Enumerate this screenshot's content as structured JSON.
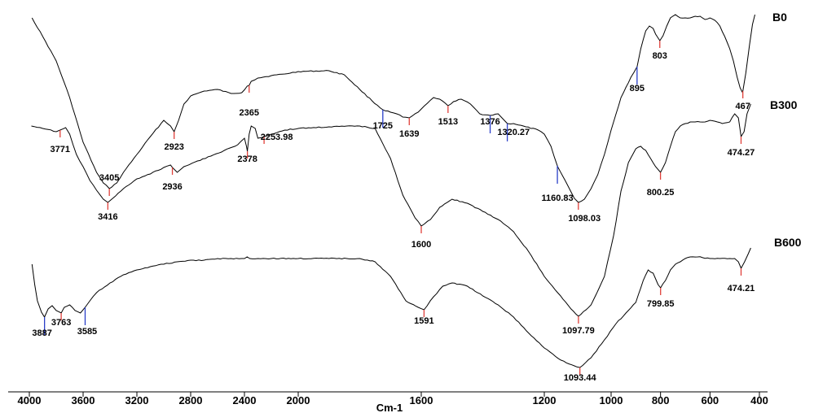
{
  "chart_data": {
    "type": "line",
    "title": "",
    "xlabel": "Cm-1",
    "ylabel": "",
    "xlim": [
      4000,
      400
    ],
    "x_reversed": true,
    "x_ticks": [
      4000,
      3600,
      3200,
      2800,
      2400,
      2000,
      1600,
      1200,
      1000,
      800,
      600,
      400
    ],
    "x_tick_labels": [
      "4000",
      "3600",
      "3200",
      "2800",
      "2400",
      "2000",
      "1600",
      "1200",
      "1000",
      "800",
      "600",
      "400"
    ],
    "ylim": [
      0,
      508
    ],
    "y_axis_shown": false,
    "grid": false,
    "colors": {
      "line": "#000000",
      "marker_red": "#e0403a",
      "marker_blue": "#2a3fc8"
    },
    "series": [
      {
        "name": "B0",
        "label_text": "B0",
        "points": [
          [
            3980,
            22
          ],
          [
            3900,
            45
          ],
          [
            3800,
            75
          ],
          [
            3700,
            120
          ],
          [
            3600,
            175
          ],
          [
            3500,
            212
          ],
          [
            3450,
            225
          ],
          [
            3405,
            232
          ],
          [
            3350,
            225
          ],
          [
            3300,
            212
          ],
          [
            3200,
            190
          ],
          [
            3100,
            168
          ],
          [
            3000,
            148
          ],
          [
            2950,
            155
          ],
          [
            2923,
            162
          ],
          [
            2890,
            148
          ],
          [
            2850,
            128
          ],
          [
            2800,
            118
          ],
          [
            2700,
            112
          ],
          [
            2600,
            110
          ],
          [
            2500,
            115
          ],
          [
            2420,
            114
          ],
          [
            2380,
            106
          ],
          [
            2365,
            105
          ],
          [
            2350,
            100
          ],
          [
            2300,
            96
          ],
          [
            2200,
            93
          ],
          [
            2100,
            91
          ],
          [
            2000,
            88
          ],
          [
            1900,
            87
          ],
          [
            1850,
            92
          ],
          [
            1800,
            110
          ],
          [
            1760,
            124
          ],
          [
            1725,
            135
          ],
          [
            1700,
            138
          ],
          [
            1680,
            140
          ],
          [
            1660,
            144
          ],
          [
            1639,
            145
          ],
          [
            1610,
            138
          ],
          [
            1580,
            127
          ],
          [
            1560,
            120
          ],
          [
            1540,
            122
          ],
          [
            1513,
            130
          ],
          [
            1495,
            125
          ],
          [
            1470,
            122
          ],
          [
            1440,
            128
          ],
          [
            1410,
            140
          ],
          [
            1376,
            142
          ],
          [
            1350,
            140
          ],
          [
            1335,
            146
          ],
          [
            1320,
            152
          ],
          [
            1300,
            152
          ],
          [
            1260,
            156
          ],
          [
            1220,
            160
          ],
          [
            1200,
            165
          ],
          [
            1180,
            180
          ],
          [
            1160,
            205
          ],
          [
            1130,
            228
          ],
          [
            1110,
            244
          ],
          [
            1098,
            249
          ],
          [
            1080,
            245
          ],
          [
            1060,
            232
          ],
          [
            1040,
            215
          ],
          [
            1020,
            190
          ],
          [
            1000,
            160
          ],
          [
            960,
            120
          ],
          [
            920,
            95
          ],
          [
            895,
            82
          ],
          [
            880,
            60
          ],
          [
            860,
            38
          ],
          [
            845,
            32
          ],
          [
            830,
            35
          ],
          [
            820,
            42
          ],
          [
            803,
            50
          ],
          [
            790,
            44
          ],
          [
            775,
            32
          ],
          [
            760,
            22
          ],
          [
            740,
            18
          ],
          [
            720,
            22
          ],
          [
            700,
            22
          ],
          [
            680,
            22
          ],
          [
            660,
            20
          ],
          [
            640,
            20
          ],
          [
            620,
            24
          ],
          [
            600,
            22
          ],
          [
            580,
            25
          ],
          [
            560,
            32
          ],
          [
            540,
            45
          ],
          [
            520,
            60
          ],
          [
            505,
            75
          ],
          [
            490,
            95
          ],
          [
            478,
            108
          ],
          [
            470,
            113
          ],
          [
            467,
            112
          ],
          [
            455,
            90
          ],
          [
            440,
            55
          ],
          [
            428,
            30
          ],
          [
            418,
            18
          ]
        ],
        "peaks": [
          {
            "x": 3405,
            "label": "3405"
          },
          {
            "x": 2923,
            "label": "2923"
          },
          {
            "x": 2365,
            "label": "2365"
          },
          {
            "x": 1725,
            "label": "1725"
          },
          {
            "x": 1639,
            "label": "1639"
          },
          {
            "x": 1513,
            "label": "1513"
          },
          {
            "x": 1376,
            "label": "1376"
          },
          {
            "x": 1320.27,
            "label": "1320.27"
          },
          {
            "x": 1160.83,
            "label": "1160.83"
          },
          {
            "x": 1098.03,
            "label": "1098.03"
          },
          {
            "x": 895,
            "label": "895"
          },
          {
            "x": 803,
            "label": "803"
          },
          {
            "x": 467,
            "label": "467"
          }
        ]
      },
      {
        "name": "B300",
        "label_text": "B300",
        "points": [
          [
            3985,
            155
          ],
          [
            3900,
            158
          ],
          [
            3800,
            162
          ],
          [
            3771,
            160
          ],
          [
            3730,
            157
          ],
          [
            3700,
            165
          ],
          [
            3650,
            190
          ],
          [
            3600,
            205
          ],
          [
            3550,
            222
          ],
          [
            3500,
            234
          ],
          [
            3450,
            245
          ],
          [
            3416,
            249
          ],
          [
            3380,
            244
          ],
          [
            3300,
            232
          ],
          [
            3200,
            220
          ],
          [
            3100,
            214
          ],
          [
            3000,
            206
          ],
          [
            2950,
            203
          ],
          [
            2936,
            206
          ],
          [
            2900,
            212
          ],
          [
            2850,
            205
          ],
          [
            2750,
            198
          ],
          [
            2650,
            192
          ],
          [
            2550,
            185
          ],
          [
            2450,
            178
          ],
          [
            2400,
            170
          ],
          [
            2385,
            180
          ],
          [
            2378,
            186
          ],
          [
            2365,
            165
          ],
          [
            2350,
            155
          ],
          [
            2320,
            158
          ],
          [
            2300,
            170
          ],
          [
            2253.98,
            168
          ],
          [
            2200,
            165
          ],
          [
            2100,
            160
          ],
          [
            2000,
            158
          ],
          [
            1900,
            156
          ],
          [
            1800,
            155
          ],
          [
            1750,
            158
          ],
          [
            1700,
            195
          ],
          [
            1660,
            240
          ],
          [
            1620,
            268
          ],
          [
            1600,
            278
          ],
          [
            1570,
            270
          ],
          [
            1540,
            255
          ],
          [
            1500,
            245
          ],
          [
            1450,
            250
          ],
          [
            1400,
            260
          ],
          [
            1350,
            270
          ],
          [
            1300,
            285
          ],
          [
            1250,
            310
          ],
          [
            1200,
            340
          ],
          [
            1160,
            360
          ],
          [
            1120,
            380
          ],
          [
            1097.79,
            389
          ],
          [
            1060,
            375
          ],
          [
            1020,
            340
          ],
          [
            990,
            290
          ],
          [
            960,
            235
          ],
          [
            930,
            200
          ],
          [
            900,
            183
          ],
          [
            880,
            180
          ],
          [
            860,
            185
          ],
          [
            840,
            195
          ],
          [
            820,
            205
          ],
          [
            800.25,
            212
          ],
          [
            780,
            200
          ],
          [
            760,
            180
          ],
          [
            740,
            162
          ],
          [
            720,
            155
          ],
          [
            700,
            152
          ],
          [
            680,
            150
          ],
          [
            660,
            150
          ],
          [
            640,
            150
          ],
          [
            620,
            150
          ],
          [
            600,
            148
          ],
          [
            570,
            150
          ],
          [
            550,
            152
          ],
          [
            520,
            150
          ],
          [
            500,
            140
          ],
          [
            485,
            145
          ],
          [
            474.27,
            168
          ],
          [
            462,
            162
          ],
          [
            450,
            140
          ],
          [
            435,
            128
          ]
        ],
        "peaks": [
          {
            "x": 3771,
            "label": "3771"
          },
          {
            "x": 3416,
            "label": "3416"
          },
          {
            "x": 2936,
            "label": "2936"
          },
          {
            "x": 2378,
            "label": "2378"
          },
          {
            "x": 2253.98,
            "label": "2253.98"
          },
          {
            "x": 1600,
            "label": "1600"
          },
          {
            "x": 1097.79,
            "label": "1097.79"
          },
          {
            "x": 800.25,
            "label": "800.25"
          },
          {
            "x": 474.27,
            "label": "474.27"
          }
        ]
      },
      {
        "name": "B600",
        "label_text": "B600",
        "points": [
          [
            3980,
            325
          ],
          [
            3960,
            350
          ],
          [
            3940,
            370
          ],
          [
            3910,
            384
          ],
          [
            3887,
            390
          ],
          [
            3860,
            380
          ],
          [
            3830,
            376
          ],
          [
            3800,
            382
          ],
          [
            3763,
            385
          ],
          [
            3740,
            378
          ],
          [
            3700,
            375
          ],
          [
            3660,
            382
          ],
          [
            3620,
            385
          ],
          [
            3585,
            378
          ],
          [
            3550,
            370
          ],
          [
            3500,
            360
          ],
          [
            3400,
            348
          ],
          [
            3300,
            338
          ],
          [
            3200,
            332
          ],
          [
            3100,
            328
          ],
          [
            3000,
            325
          ],
          [
            2900,
            322
          ],
          [
            2800,
            320
          ],
          [
            2700,
            320
          ],
          [
            2600,
            318
          ],
          [
            2500,
            318
          ],
          [
            2420,
            318
          ],
          [
            2400,
            318
          ],
          [
            2380,
            316
          ],
          [
            2360,
            318
          ],
          [
            2300,
            318
          ],
          [
            2200,
            318
          ],
          [
            2000,
            318
          ],
          [
            1900,
            318
          ],
          [
            1800,
            318
          ],
          [
            1750,
            322
          ],
          [
            1700,
            340
          ],
          [
            1650,
            370
          ],
          [
            1610,
            378
          ],
          [
            1591,
            381
          ],
          [
            1560,
            365
          ],
          [
            1530,
            352
          ],
          [
            1500,
            348
          ],
          [
            1450,
            352
          ],
          [
            1400,
            364
          ],
          [
            1350,
            375
          ],
          [
            1300,
            390
          ],
          [
            1250,
            410
          ],
          [
            1200,
            428
          ],
          [
            1150,
            443
          ],
          [
            1110,
            450
          ],
          [
            1093.44,
            452
          ],
          [
            1060,
            440
          ],
          [
            1020,
            418
          ],
          [
            980,
            398
          ],
          [
            940,
            385
          ],
          [
            900,
            372
          ],
          [
            870,
            345
          ],
          [
            850,
            332
          ],
          [
            830,
            336
          ],
          [
            810,
            350
          ],
          [
            799.85,
            354
          ],
          [
            780,
            345
          ],
          [
            760,
            332
          ],
          [
            740,
            325
          ],
          [
            720,
            322
          ],
          [
            700,
            318
          ],
          [
            680,
            316
          ],
          [
            650,
            316
          ],
          [
            600,
            318
          ],
          [
            560,
            318
          ],
          [
            520,
            318
          ],
          [
            500,
            318
          ],
          [
            485,
            322
          ],
          [
            474.21,
            330
          ],
          [
            460,
            322
          ],
          [
            445,
            312
          ],
          [
            435,
            305
          ]
        ],
        "peaks": [
          {
            "x": 3887,
            "label": "3887"
          },
          {
            "x": 3763,
            "label": "3763"
          },
          {
            "x": 3585,
            "label": "3585"
          },
          {
            "x": 1591,
            "label": "1591"
          },
          {
            "x": 1093.44,
            "label": "1093.44"
          },
          {
            "x": 799.85,
            "label": "799.85"
          },
          {
            "x": 474.21,
            "label": "474.21"
          }
        ]
      }
    ]
  }
}
